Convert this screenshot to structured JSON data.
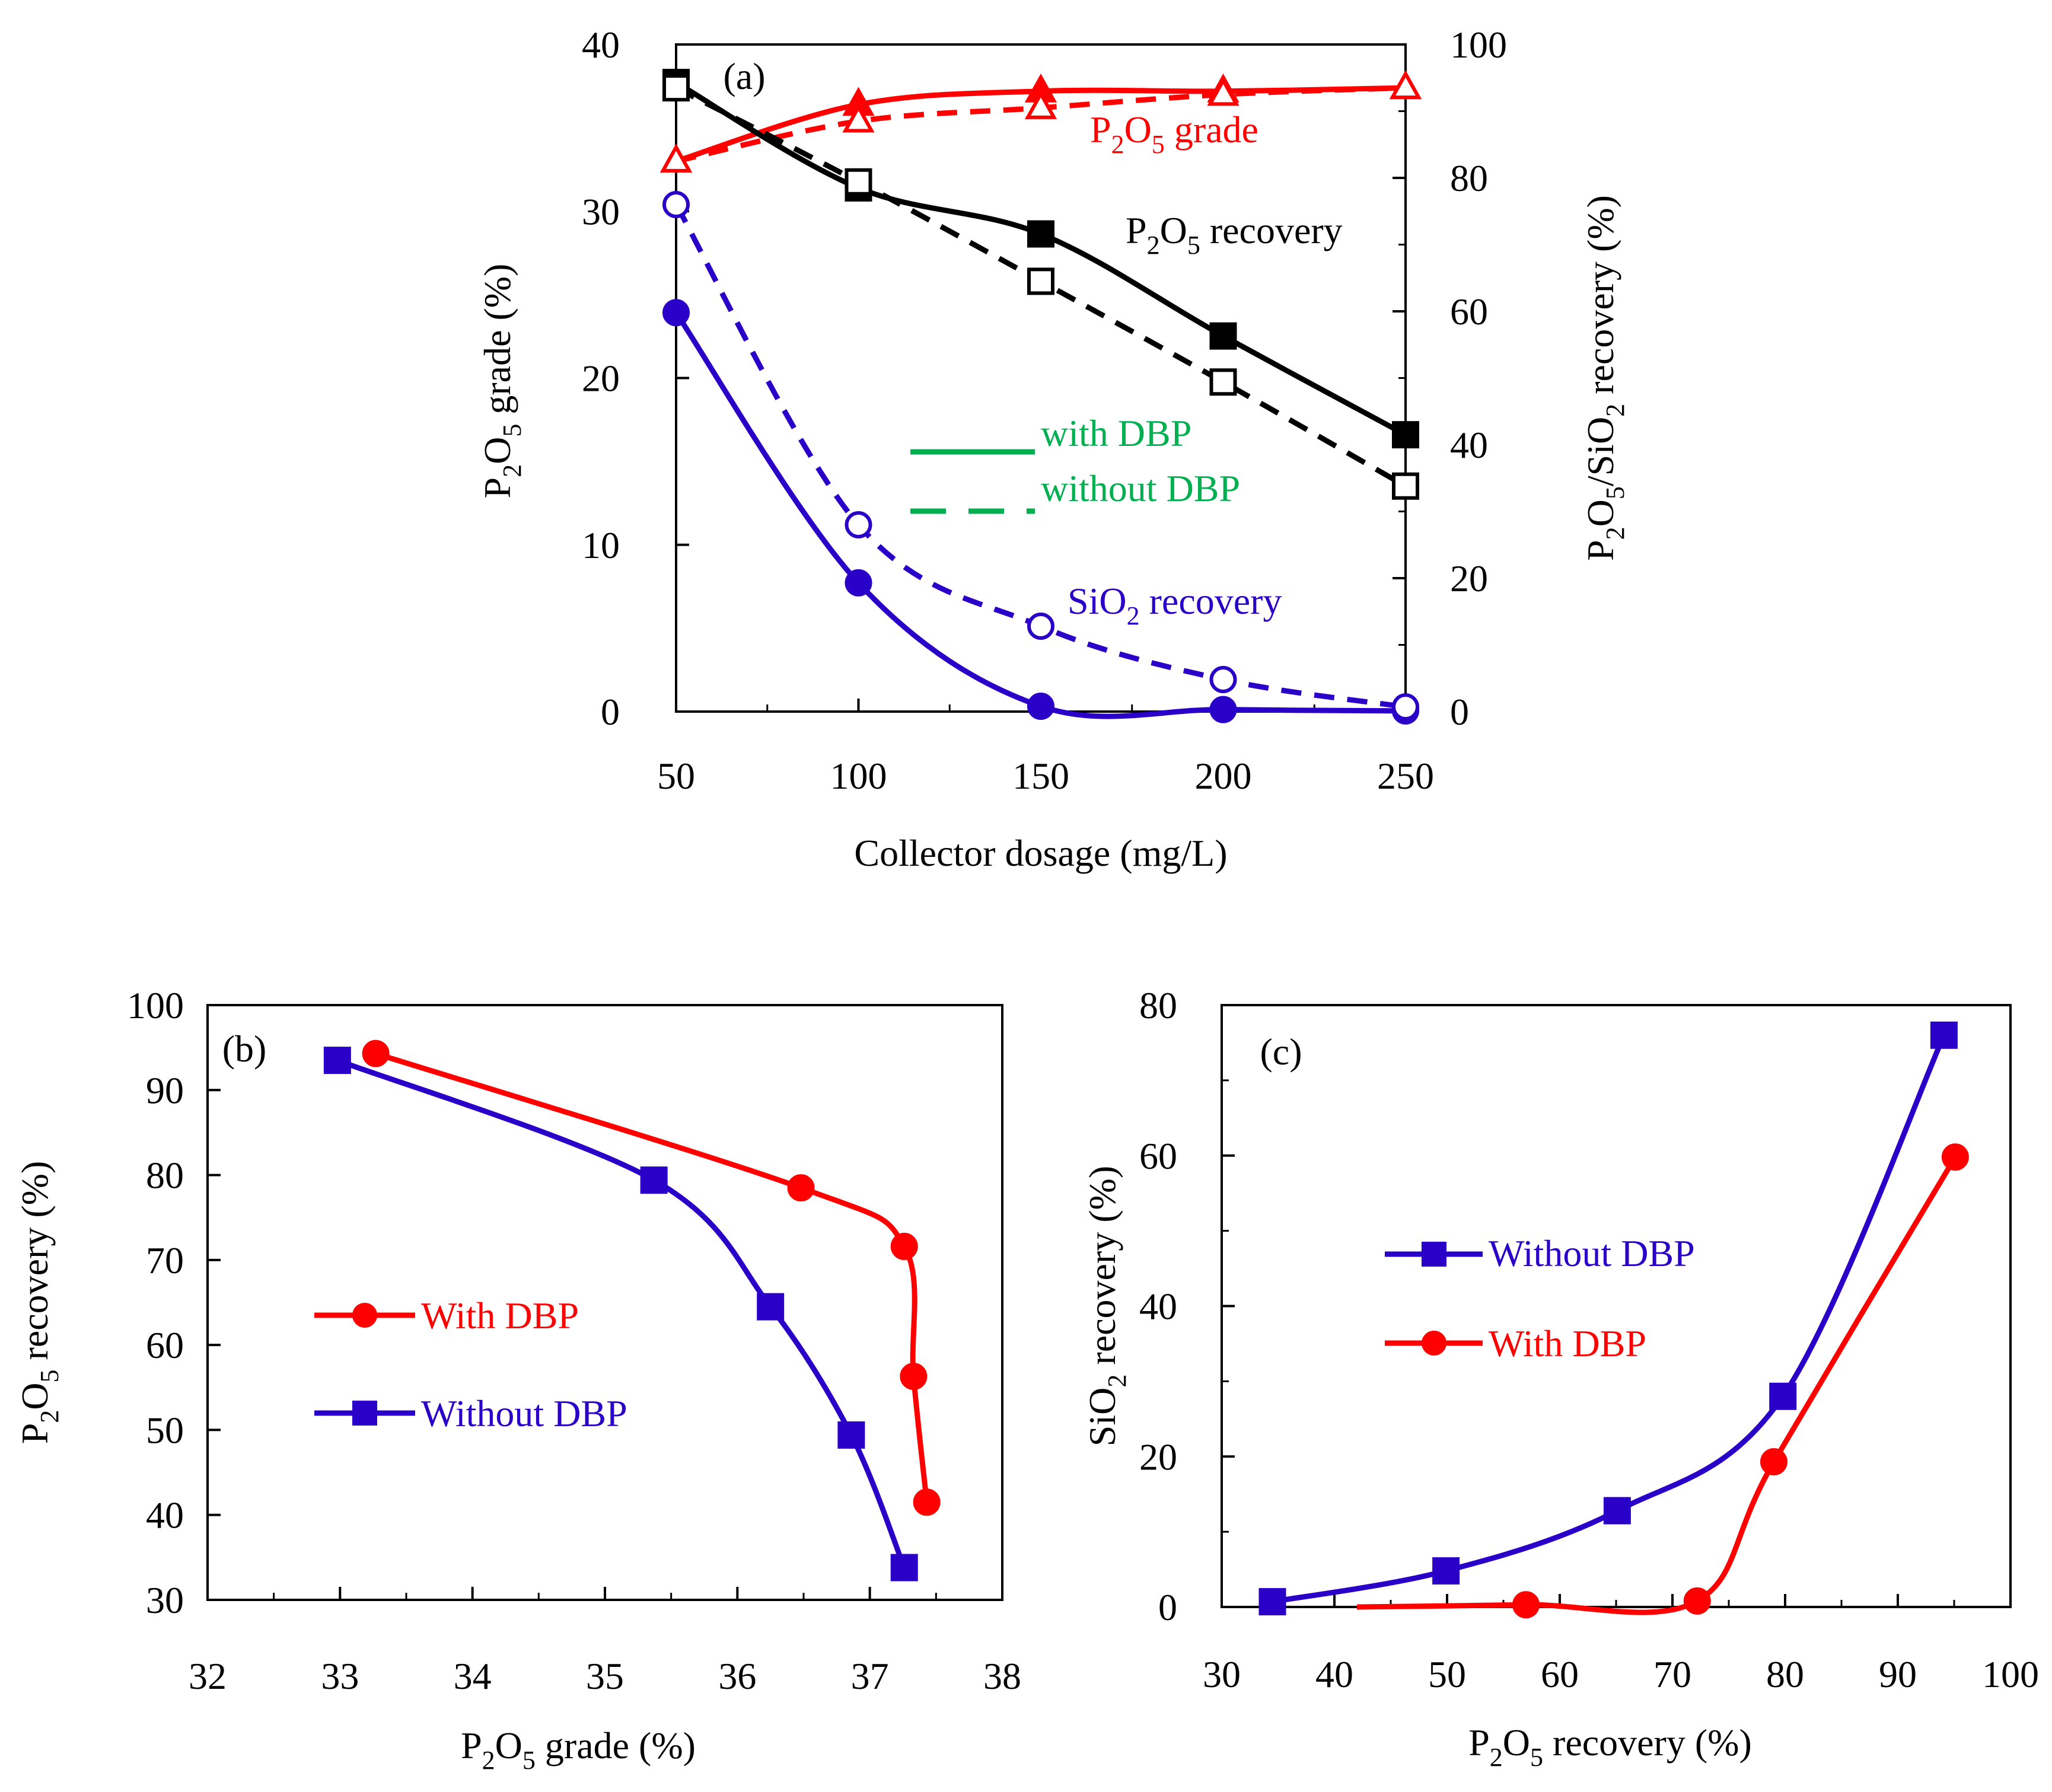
{
  "colors": {
    "red": "#ff0000",
    "black": "#000000",
    "blue": "#2a00c8",
    "green": "#00b050"
  },
  "chart_data": [
    {
      "panel": "(a)",
      "type": "line",
      "xlabel": "Collector dosage (mg/L)",
      "ylabel_left": "P2O5 grade (%)",
      "ylabel_right": "P2O5/SiO2 recovery (%)",
      "x_ticks": [
        "50",
        "100",
        "150",
        "200",
        "250"
      ],
      "y_left_ticks": [
        "0",
        "10",
        "20",
        "30",
        "40"
      ],
      "y_right_ticks": [
        "0",
        "20",
        "40",
        "60",
        "80",
        "100"
      ],
      "xlim": [
        50,
        250
      ],
      "ylim_left": [
        0,
        40
      ],
      "ylim_right": [
        0,
        100
      ],
      "x": [
        50,
        100,
        150,
        200,
        250
      ],
      "series": [
        {
          "name": "P2O5 grade with DBP",
          "axis": "left",
          "style": "solid",
          "marker": "filled-triangle",
          "color": "red",
          "values": [
            33.0,
            36.4,
            37.2,
            37.2,
            37.4
          ]
        },
        {
          "name": "P2O5 grade without DBP",
          "axis": "left",
          "style": "dashed",
          "marker": "open-triangle",
          "color": "red",
          "values": [
            33.0,
            35.4,
            36.2,
            37.0,
            37.4
          ]
        },
        {
          "name": "P2O5 recovery with DBP",
          "axis": "right",
          "style": "solid",
          "marker": "filled-square",
          "color": "black",
          "values": [
            94.3,
            78.5,
            71.6,
            56.3,
            41.5
          ]
        },
        {
          "name": "P2O5 recovery without DBP",
          "axis": "right",
          "style": "dashed",
          "marker": "open-square",
          "color": "black",
          "values": [
            93.5,
            79.4,
            64.5,
            49.4,
            33.8
          ]
        },
        {
          "name": "SiO2 recovery with DBP",
          "axis": "right",
          "style": "solid",
          "marker": "filled-circle",
          "color": "blue",
          "values": [
            59.8,
            19.3,
            0.8,
            0.3,
            0.1
          ]
        },
        {
          "name": "SiO2 recovery without DBP",
          "axis": "right",
          "style": "dashed",
          "marker": "open-circle",
          "color": "blue",
          "values": [
            76.0,
            28.0,
            12.8,
            4.8,
            0.7
          ]
        }
      ],
      "annotations": {
        "label": "(a)",
        "grade": {
          "main": "P",
          "sub1": "2",
          "mid": "O",
          "sub2": "5",
          "tail": " grade"
        },
        "recovery": {
          "main": "P",
          "sub1": "2",
          "mid": "O",
          "sub2": "5",
          "tail": " recovery"
        },
        "sio2": {
          "main": "SiO",
          "sub1": "2",
          "tail": " recovery"
        }
      },
      "legend": {
        "with": "with DBP",
        "without": "without DBP",
        "placement": "center"
      }
    },
    {
      "panel": "(b)",
      "type": "line",
      "xlabel": "P2O5 grade (%)",
      "ylabel": "P2O5 recovery (%)",
      "x_ticks": [
        "32",
        "33",
        "34",
        "35",
        "36",
        "37",
        "38"
      ],
      "y_ticks": [
        "30",
        "40",
        "50",
        "60",
        "70",
        "80",
        "90",
        "100"
      ],
      "xlim": [
        32,
        38
      ],
      "ylim": [
        30,
        100
      ],
      "series": [
        {
          "name": "With DBP",
          "color": "red",
          "marker": "circle",
          "x": [
            33.27,
            36.48,
            37.26,
            37.33,
            37.43
          ],
          "y": [
            94.3,
            78.5,
            71.6,
            56.3,
            41.5
          ]
        },
        {
          "name": "Without DBP",
          "color": "blue",
          "marker": "square",
          "x": [
            32.98,
            35.37,
            36.25,
            36.86,
            37.26
          ],
          "y": [
            93.5,
            79.4,
            64.5,
            49.4,
            33.8
          ]
        }
      ],
      "legend": {
        "with": "With DBP",
        "without": "Without DBP",
        "placement": "center-left"
      },
      "label": "(b)"
    },
    {
      "panel": "(c)",
      "type": "line",
      "xlabel": "P2O5 recovery (%)",
      "ylabel": "SiO2 recovery (%)",
      "x_ticks": [
        "30",
        "40",
        "50",
        "60",
        "70",
        "80",
        "90",
        "100"
      ],
      "y_ticks": [
        "0",
        "20",
        "40",
        "60",
        "80"
      ],
      "xlim": [
        30,
        100
      ],
      "ylim": [
        0,
        80
      ],
      "series": [
        {
          "name": "Without DBP",
          "color": "blue",
          "marker": "square",
          "x": [
            34.5,
            49.9,
            65.1,
            79.8,
            94.1
          ],
          "y": [
            0.7,
            4.8,
            12.8,
            28.0,
            76.0
          ]
        },
        {
          "name": "With DBP",
          "color": "red",
          "marker": "circle",
          "x": [
            57.0,
            72.2,
            79.0,
            95.1
          ],
          "y": [
            0.3,
            0.8,
            19.3,
            59.8
          ],
          "curve_start": [
            42.0,
            0.0
          ]
        }
      ],
      "legend": {
        "without": "Without DBP",
        "with": "With DBP",
        "placement": "upper-left"
      },
      "label": "(c)"
    }
  ]
}
